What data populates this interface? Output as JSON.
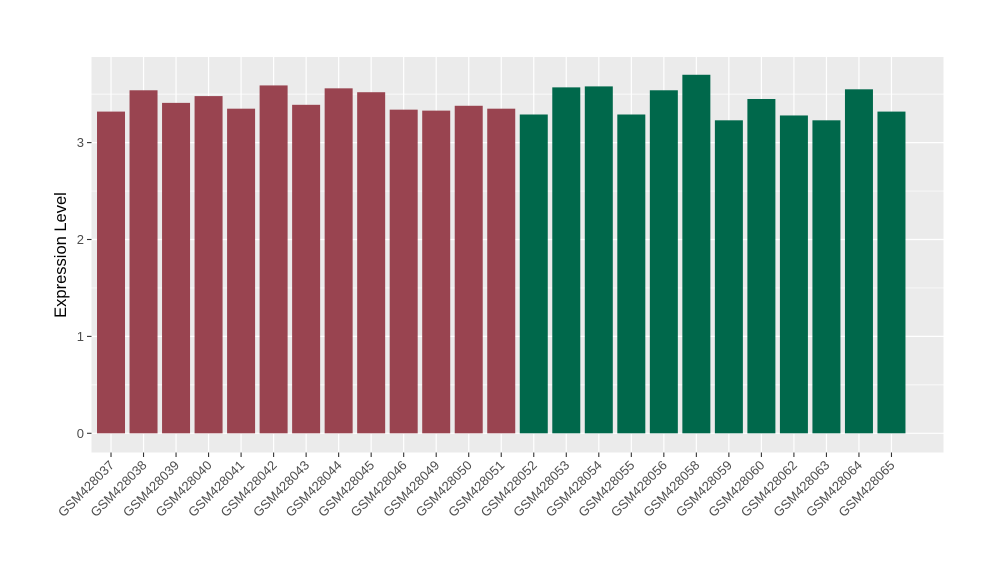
{
  "chart_data": {
    "type": "bar",
    "title": "",
    "xlabel": "",
    "ylabel": "Expression Level",
    "categories": [
      "GSM428037",
      "GSM428038",
      "GSM428039",
      "GSM428040",
      "GSM428041",
      "GSM428042",
      "GSM428043",
      "GSM428044",
      "GSM428045",
      "GSM428046",
      "GSM428049",
      "GSM428050",
      "GSM428051",
      "GSM428052",
      "GSM428053",
      "GSM428054",
      "GSM428055",
      "GSM428056",
      "GSM428058",
      "GSM428059",
      "GSM428060",
      "GSM428062",
      "GSM428063",
      "GSM428064",
      "GSM428065"
    ],
    "values": [
      3.32,
      3.54,
      3.41,
      3.48,
      3.35,
      3.59,
      3.39,
      3.56,
      3.52,
      3.34,
      3.33,
      3.38,
      3.35,
      3.29,
      3.57,
      3.58,
      3.29,
      3.54,
      3.7,
      3.23,
      3.45,
      3.28,
      3.23,
      3.55,
      3.32
    ],
    "bar_groups": [
      "group1",
      "group1",
      "group1",
      "group1",
      "group1",
      "group1",
      "group1",
      "group1",
      "group1",
      "group1",
      "group1",
      "group1",
      "group1",
      "group2",
      "group2",
      "group2",
      "group2",
      "group2",
      "group2",
      "group2",
      "group2",
      "group2",
      "group2",
      "group2",
      "group2"
    ],
    "group_colors": {
      "group1": "#994450",
      "group2": "#00684B"
    },
    "ylim": [
      0,
      3.9
    ],
    "yticks": [
      0,
      1,
      2,
      3
    ],
    "yticks_minor": [
      0.5,
      1.5,
      2.5,
      3.5
    ],
    "x_label_angle": 45,
    "grid": "on",
    "legend": "none",
    "colors": {
      "panel_background": "#EBEBEB",
      "grid_line": "#FFFFFF",
      "tick_mark": "#333333",
      "tick_label_text": "#4D4D4D",
      "axis_title_text": "#000000",
      "figure_background": "#FFFFFF"
    }
  }
}
